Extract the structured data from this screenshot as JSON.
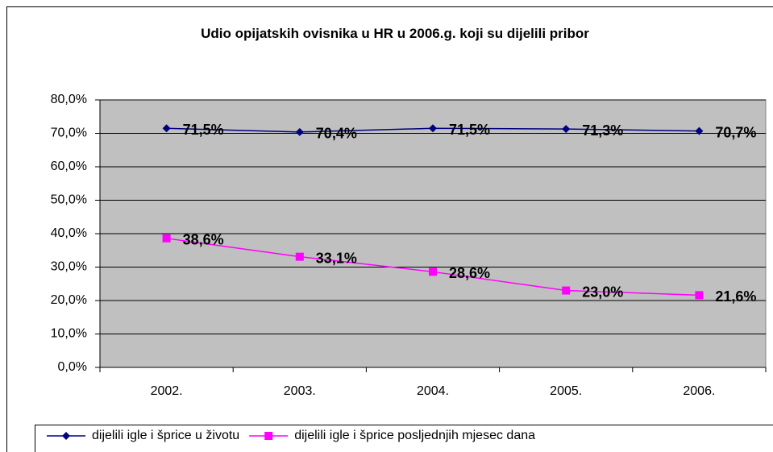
{
  "chart_data": {
    "type": "line",
    "title": "Udio opijatskih ovisnika u HR u 2006.g. koji su dijelili pribor",
    "categories": [
      "2002.",
      "2003.",
      "2004.",
      "2005.",
      "2006."
    ],
    "series": [
      {
        "name": "dijelili igle i šprice u životu",
        "color": "#000080",
        "marker": "diamond",
        "values": [
          71.5,
          70.4,
          71.5,
          71.3,
          70.7
        ],
        "value_labels": [
          "71,5%",
          "70,4%",
          "71,5%",
          "71,3%",
          "70,7%"
        ]
      },
      {
        "name": "dijelili igle i šprice posljednjih mjesec dana",
        "color": "#ff00ff",
        "marker": "square",
        "values": [
          38.6,
          33.1,
          28.6,
          23.0,
          21.6
        ],
        "value_labels": [
          "38,6%",
          "33,1%",
          "28,6%",
          "23,0%",
          "21,6%"
        ]
      }
    ],
    "ylim": [
      0,
      80
    ],
    "yticks": [
      {
        "value": 0,
        "label": "0,0%"
      },
      {
        "value": 10,
        "label": "10,0%"
      },
      {
        "value": 20,
        "label": "20,0%"
      },
      {
        "value": 30,
        "label": "30,0%"
      },
      {
        "value": 40,
        "label": "40,0%"
      },
      {
        "value": 50,
        "label": "50,0%"
      },
      {
        "value": 60,
        "label": "60,0%"
      },
      {
        "value": 70,
        "label": "70,0%"
      },
      {
        "value": 80,
        "label": "80,0%"
      }
    ],
    "grid": true,
    "legend": "bottom"
  }
}
